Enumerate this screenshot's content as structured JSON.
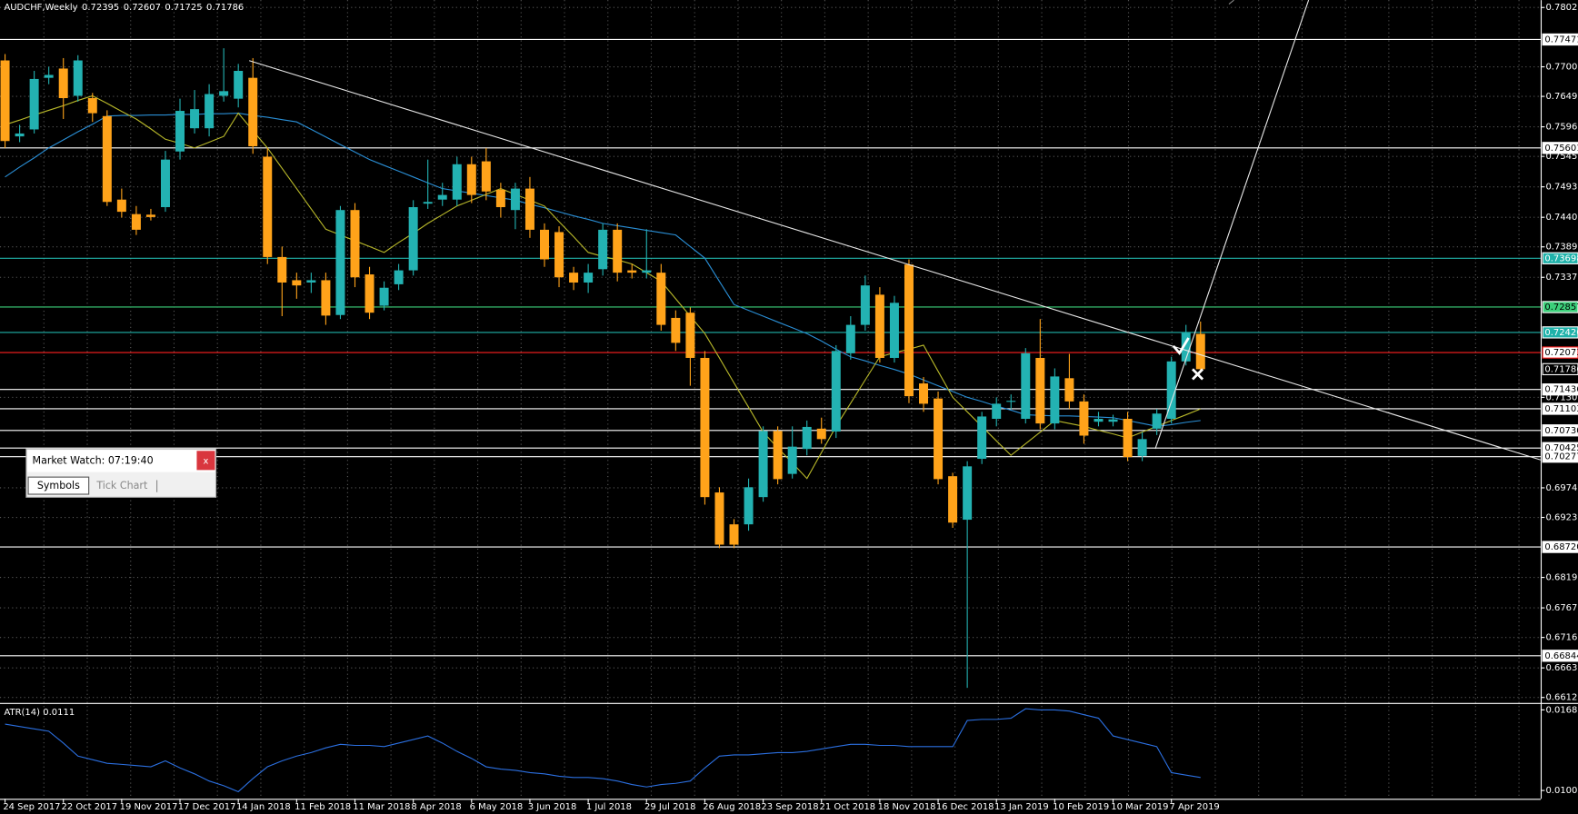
{
  "chart_data": {
    "type": "candlestick",
    "title": "AUDCHF,Weekly",
    "up_color": "#23b2b2",
    "down_color": "#ffa31a",
    "grid": true,
    "categories": [
      "24 Sep 2017",
      null,
      null,
      null,
      "22 Oct 2017",
      null,
      null,
      null,
      "19 Nov 2017",
      null,
      null,
      null,
      "17 Dec 2017",
      null,
      null,
      null,
      "14 Jan 2018",
      null,
      null,
      null,
      "11 Feb 2018",
      null,
      null,
      null,
      "11 Mar 2018",
      null,
      null,
      null,
      "8 Apr 2018",
      null,
      null,
      null,
      "6 May 2018",
      null,
      null,
      null,
      "3 Jun 2018",
      null,
      null,
      null,
      "1 Jul 2018",
      null,
      null,
      null,
      "29 Jul 2018",
      null,
      null,
      null,
      "26 Aug 2018",
      null,
      null,
      null,
      "23 Sep 2018",
      null,
      null,
      null,
      "21 Oct 2018",
      null,
      null,
      null,
      "18 Nov 2018",
      null,
      null,
      null,
      "16 Dec 2018",
      null,
      null,
      null,
      "13 Jan 2019",
      null,
      null,
      null,
      "10 Feb 2019",
      null,
      null,
      null,
      "10 Mar 2019",
      null,
      null,
      null,
      "7 Apr 2019",
      null,
      null
    ],
    "open": [
      0.7711,
      0.758,
      0.7592,
      0.7681,
      0.7697,
      0.765,
      0.7646,
      0.7615,
      0.7471,
      0.7446,
      0.7445,
      0.7458,
      0.7554,
      0.7594,
      0.7594,
      0.765,
      0.7645,
      0.7681,
      0.7545,
      0.7372,
      0.7332,
      0.7328,
      0.7332,
      0.7272,
      0.7453,
      0.7342,
      0.7288,
      0.7325,
      0.7349,
      0.7464,
      0.7471,
      0.7471,
      0.7532,
      0.7537,
      0.7488,
      0.7453,
      0.749,
      0.7419,
      0.7415,
      0.7345,
      0.7328,
      0.7351,
      0.7419,
      0.7349,
      0.7345,
      0.7345,
      0.7267,
      0.7276,
      0.7198,
      0.6966,
      0.6911,
      0.6911,
      0.6958,
      0.7072,
      0.6998,
      0.7041,
      0.7076,
      0.7071,
      0.7206,
      0.7255,
      0.7307,
      0.7198,
      0.7359,
      0.7154,
      0.7128,
      0.6994,
      0.6919,
      0.7024,
      0.7093,
      0.7123,
      0.7093,
      0.7198,
      0.7085,
      0.7163,
      0.7123,
      0.7088,
      0.7088,
      0.7093,
      0.7029,
      0.7076,
      0.7093,
      0.7192,
      0.72395
    ],
    "high": [
      0.7722,
      0.76,
      0.7693,
      0.77,
      0.7715,
      0.772,
      0.7655,
      0.7625,
      0.749,
      0.746,
      0.7455,
      0.7555,
      0.7645,
      0.766,
      0.767,
      0.7732,
      0.7705,
      0.7715,
      0.756,
      0.739,
      0.7345,
      0.7345,
      0.7345,
      0.746,
      0.7465,
      0.7355,
      0.733,
      0.736,
      0.747,
      0.754,
      0.75,
      0.7545,
      0.7545,
      0.756,
      0.75,
      0.75,
      0.751,
      0.743,
      0.7425,
      0.7355,
      0.736,
      0.743,
      0.743,
      0.736,
      0.742,
      0.736,
      0.728,
      0.7285,
      0.721,
      0.6975,
      0.692,
      0.699,
      0.708,
      0.708,
      0.708,
      0.709,
      0.7095,
      0.722,
      0.727,
      0.734,
      0.732,
      0.7305,
      0.7368,
      0.7165,
      0.714,
      0.7,
      0.702,
      0.7105,
      0.713,
      0.7135,
      0.7215,
      0.7265,
      0.718,
      0.7205,
      0.7135,
      0.7105,
      0.71,
      0.7105,
      0.707,
      0.711,
      0.72,
      0.7255,
      0.72607
    ],
    "low": [
      0.756,
      0.757,
      0.7585,
      0.767,
      0.761,
      0.764,
      0.7605,
      0.746,
      0.744,
      0.741,
      0.7435,
      0.745,
      0.754,
      0.7585,
      0.758,
      0.764,
      0.763,
      0.755,
      0.736,
      0.727,
      0.73,
      0.731,
      0.7255,
      0.7265,
      0.732,
      0.7265,
      0.728,
      0.7315,
      0.734,
      0.7455,
      0.746,
      0.746,
      0.7465,
      0.747,
      0.744,
      0.742,
      0.7405,
      0.7355,
      0.732,
      0.7315,
      0.731,
      0.734,
      0.733,
      0.7335,
      0.7335,
      0.7245,
      0.721,
      0.715,
      0.6945,
      0.687,
      0.687,
      0.69,
      0.695,
      0.698,
      0.699,
      0.703,
      0.705,
      0.706,
      0.7195,
      0.7245,
      0.719,
      0.719,
      0.712,
      0.7105,
      0.698,
      0.6905,
      0.6629,
      0.7015,
      0.708,
      0.711,
      0.7085,
      0.7075,
      0.7075,
      0.711,
      0.705,
      0.708,
      0.708,
      0.702,
      0.702,
      0.7065,
      0.7085,
      0.7185,
      0.71725
    ],
    "close": [
      0.7572,
      0.7585,
      0.7679,
      0.7686,
      0.7646,
      0.7711,
      0.762,
      0.7467,
      0.745,
      0.7419,
      0.7441,
      0.754,
      0.7624,
      0.7627,
      0.7653,
      0.7658,
      0.7693,
      0.7563,
      0.7372,
      0.7328,
      0.7323,
      0.7332,
      0.7271,
      0.7453,
      0.7337,
      0.7276,
      0.7319,
      0.7349,
      0.7458,
      0.7467,
      0.7479,
      0.7532,
      0.7479,
      0.7485,
      0.7458,
      0.749,
      0.7419,
      0.7368,
      0.7337,
      0.7328,
      0.7345,
      0.7419,
      0.7345,
      0.7345,
      0.7349,
      0.7255,
      0.7224,
      0.7198,
      0.6958,
      0.6876,
      0.6876,
      0.6975,
      0.7072,
      0.6989,
      0.7045,
      0.7079,
      0.7058,
      0.721,
      0.7255,
      0.7323,
      0.7198,
      0.7293,
      0.7132,
      0.7119,
      0.6989,
      0.6914,
      0.7011,
      0.7097,
      0.7119,
      0.7124,
      0.7206,
      0.7085,
      0.7166,
      0.7123,
      0.7064,
      0.7093,
      0.7092,
      0.7027,
      0.7058,
      0.7102,
      0.7192,
      0.7241,
      0.71786
    ],
    "series": [
      {
        "color": "#2a8fd6",
        "values": [
          0.751,
          0.7527,
          0.7543,
          0.756,
          0.7574,
          0.7588,
          0.7601,
          0.7615,
          0.7616,
          0.7616,
          0.7617,
          0.7617,
          0.7618,
          0.7618,
          0.7619,
          0.7619,
          0.762,
          0.7616,
          0.7613,
          0.7609,
          0.7605,
          0.7592,
          0.7579,
          0.7566,
          0.7553,
          0.754,
          0.753,
          0.752,
          0.751,
          0.75,
          0.749,
          0.7486,
          0.7482,
          0.7478,
          0.7474,
          0.747,
          0.7463,
          0.7457,
          0.745,
          0.7443,
          0.7437,
          0.743,
          0.7426,
          0.7422,
          0.7418,
          0.7414,
          0.741,
          0.739,
          0.737,
          0.733,
          0.729,
          0.728,
          0.727,
          0.726,
          0.725,
          0.724,
          0.7227,
          0.7213,
          0.72,
          0.7193,
          0.7185,
          0.7178,
          0.717,
          0.716,
          0.715,
          0.714,
          0.713,
          0.7123,
          0.7115,
          0.7108,
          0.71,
          0.7099,
          0.7098,
          0.7098,
          0.7097,
          0.7096,
          0.7095,
          0.709,
          0.7085,
          0.708,
          0.7083,
          0.7087,
          0.709
        ]
      },
      {
        "color": "#b9b92a",
        "values": [
          0.76,
          0.7608,
          0.7617,
          0.7625,
          0.7633,
          0.7642,
          0.765,
          0.7637,
          0.7623,
          0.761,
          0.7593,
          0.7575,
          0.7568,
          0.756,
          0.757,
          0.758,
          0.762,
          0.759,
          0.756,
          0.7525,
          0.749,
          0.7455,
          0.742,
          0.741,
          0.74,
          0.739,
          0.738,
          0.7397,
          0.7413,
          0.743,
          0.7445,
          0.746,
          0.747,
          0.748,
          0.749,
          0.748,
          0.747,
          0.746,
          0.7433,
          0.7407,
          0.738,
          0.7373,
          0.7367,
          0.736,
          0.7345,
          0.733,
          0.73,
          0.727,
          0.724,
          0.7198,
          0.7155,
          0.7113,
          0.707,
          0.7043,
          0.7017,
          0.699,
          0.7035,
          0.708,
          0.712,
          0.716,
          0.72,
          0.7207,
          0.7213,
          0.722,
          0.7175,
          0.713,
          0.7105,
          0.708,
          0.7055,
          0.703,
          0.705,
          0.707,
          0.709,
          0.7085,
          0.708,
          0.7073,
          0.7067,
          0.706,
          0.707,
          0.708,
          0.709,
          0.71,
          0.711
        ]
      }
    ],
    "ylim": [
      0.6603,
      0.7815
    ],
    "yticks": [
      {
        "value": 0.78023,
        "label": "0.78023"
      },
      {
        "value": 0.77,
        "label": "0.77000"
      },
      {
        "value": 0.7649,
        "label": "0.76490"
      },
      {
        "value": 0.75965,
        "label": "0.75965"
      },
      {
        "value": 0.75455,
        "label": "0.75455"
      },
      {
        "value": 0.7493,
        "label": "0.74930"
      },
      {
        "value": 0.74405,
        "label": "0.74405"
      },
      {
        "value": 0.73895,
        "label": "0.73895"
      },
      {
        "value": 0.7337,
        "label": "0.73370"
      },
      {
        "value": 0.713,
        "label": "0.71300"
      },
      {
        "value": 0.6974,
        "label": "0.69740"
      },
      {
        "value": 0.6923,
        "label": "0.69230"
      },
      {
        "value": 0.68195,
        "label": "0.68195"
      },
      {
        "value": 0.6767,
        "label": "0.67670"
      },
      {
        "value": 0.6716,
        "label": "0.67160"
      },
      {
        "value": 0.66635,
        "label": "0.66635"
      },
      {
        "value": 0.66125,
        "label": "0.66125"
      }
    ],
    "levels": [
      {
        "value": 0.77471,
        "label": "0.77471",
        "color": "#ffffff"
      },
      {
        "value": 0.75601,
        "label": "0.75601",
        "color": "#ffffff"
      },
      {
        "value": 0.73698,
        "label": "0.73698",
        "color": "#20b2aa"
      },
      {
        "value": 0.72857,
        "label": "0.72857",
        "color": "#3cd07a"
      },
      {
        "value": 0.7242,
        "label": "0.72420",
        "color": "#20b2aa"
      },
      {
        "value": 0.72073,
        "label": "0.72073",
        "color": "#ff2020"
      },
      {
        "value": 0.71436,
        "label": "0.71436",
        "color": "#ffffff"
      },
      {
        "value": 0.71103,
        "label": "0.71103",
        "color": "#ffffff"
      },
      {
        "value": 0.7073,
        "label": "0.70730",
        "color": "#ffffff"
      },
      {
        "value": 0.70425,
        "label": "0.70425",
        "color": "#ffffff"
      },
      {
        "value": 0.70277,
        "label": "0.70277",
        "color": "#ffffff"
      },
      {
        "value": 0.6872,
        "label": "0.68720",
        "color": "#ffffff"
      },
      {
        "value": 0.66844,
        "label": "0.66844",
        "color": "#ffffff"
      }
    ],
    "indicator": {
      "title": "ATR(14)",
      "color": "#2b6fe0",
      "ylim": [
        0.0093,
        0.0173
      ],
      "yticks": [
        0.0168,
        {
          "value": 0.01,
          "label": "0.0100"
        }
      ],
      "values": [
        0.0156,
        0.0154,
        0.0152,
        0.015,
        0.014,
        0.0129,
        0.0126,
        0.0123,
        0.0122,
        0.0121,
        0.012,
        0.0125,
        0.0119,
        0.0114,
        0.0108,
        0.0104,
        0.0099,
        0.011,
        0.012,
        0.0125,
        0.0129,
        0.0132,
        0.0136,
        0.0139,
        0.0138,
        0.0138,
        0.0137,
        0.014,
        0.0143,
        0.0146,
        0.014,
        0.0133,
        0.0127,
        0.012,
        0.0118,
        0.0117,
        0.0115,
        0.0114,
        0.0112,
        0.0111,
        0.0111,
        0.011,
        0.0108,
        0.0105,
        0.0103,
        0.0105,
        0.0106,
        0.0108,
        0.0119,
        0.0129,
        0.013,
        0.013,
        0.0131,
        0.0132,
        0.0132,
        0.0133,
        0.0135,
        0.0137,
        0.0139,
        0.0139,
        0.0138,
        0.0138,
        0.0137,
        0.0137,
        0.0137,
        0.0137,
        0.0159,
        0.016,
        0.016,
        0.0161,
        0.0169,
        0.0168,
        0.0168,
        0.0167,
        0.0164,
        0.0161,
        0.0146,
        0.0143,
        0.014,
        0.0137,
        0.0115,
        0.0113,
        0.0111
      ]
    }
  },
  "market_watch": {
    "title": "Market Watch: 07:19:40",
    "close": "x",
    "tabs": [
      "Symbols",
      "Tick Chart"
    ]
  }
}
